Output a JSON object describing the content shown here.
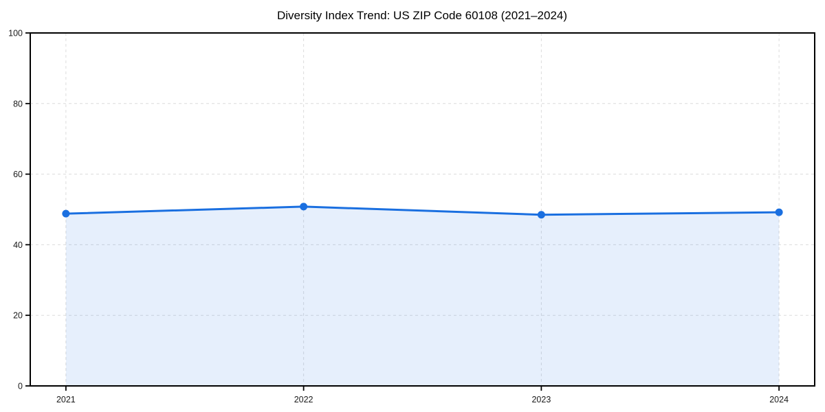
{
  "chart_data": {
    "type": "area",
    "title": "Diversity Index Trend: US ZIP Code 60108 (2021–2024)",
    "xlabel": "",
    "ylabel": "",
    "x": [
      2021,
      2022,
      2023,
      2024
    ],
    "series": [
      {
        "name": "Diversity Index",
        "values": [
          48.8,
          50.8,
          48.5,
          49.2
        ]
      }
    ],
    "xlim": [
      2020.85,
      2024.15
    ],
    "ylim": [
      0,
      100
    ],
    "xticks": [
      2021,
      2022,
      2023,
      2024
    ],
    "xtick_labels": [
      "2021",
      "2022",
      "2023",
      "2024"
    ],
    "yticks": [
      0,
      20,
      40,
      60,
      80,
      100
    ],
    "ytick_labels": [
      "0",
      "20",
      "40",
      "60",
      "80",
      "100"
    ],
    "grid": "both, dashed",
    "legend_position": "none",
    "colors": {
      "line": "#1a6fe0",
      "marker": "#1a6fe0",
      "area_fill": "rgba(26, 111, 224, 0.11)",
      "gridline": "#dcdcdc",
      "spine": "#000000",
      "background": "#ffffff"
    },
    "marker_radius": 5.5,
    "line_width": 3
  }
}
